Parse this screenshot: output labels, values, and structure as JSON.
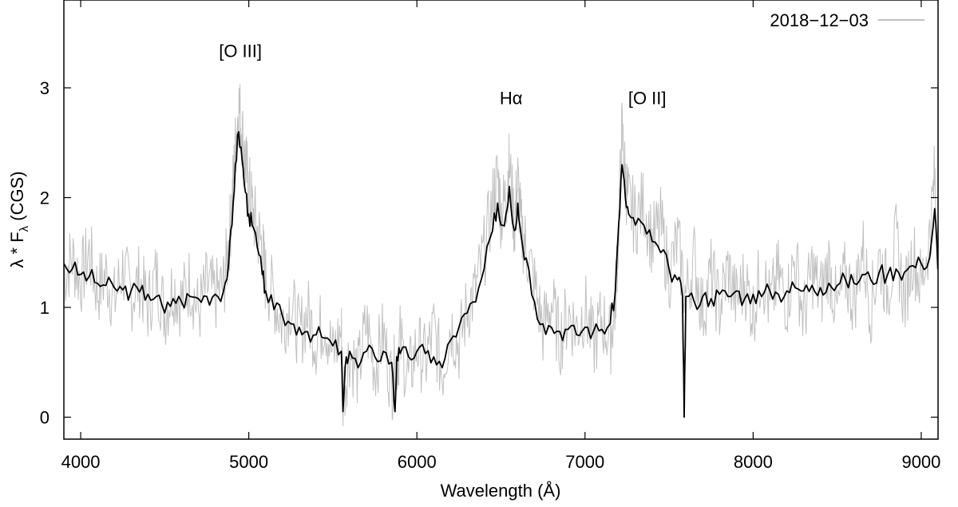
{
  "chart_data": {
    "type": "line",
    "title": "",
    "xlabel": "Wavelength (Å)",
    "ylabel_parts": {
      "lambda": "λ",
      "star": " * F",
      "sub": "λ",
      "unit": " (CGS)"
    },
    "xlim": [
      3900,
      9100
    ],
    "ylim": [
      -0.2,
      3.8
    ],
    "x_ticks": [
      4000,
      5000,
      6000,
      7000,
      8000,
      9000
    ],
    "y_ticks": [
      0,
      1,
      2,
      3
    ],
    "legend": {
      "position": "top-right",
      "label": "2018−12−03"
    },
    "annotations": [
      {
        "text": "[O III]",
        "x": 4950,
        "y": 3.28
      },
      {
        "text": "Hα",
        "x": 6560,
        "y": 2.85
      },
      {
        "text": "[O II]",
        "x": 7370,
        "y": 2.85
      }
    ],
    "series": [
      {
        "name": "2018−12−03",
        "style": "raw",
        "color": "#c0c0c0",
        "x": [
          3900,
          3950,
          4000,
          4050,
          4100,
          4150,
          4200,
          4250,
          4300,
          4350,
          4400,
          4450,
          4500,
          4550,
          4600,
          4650,
          4700,
          4750,
          4800,
          4850,
          4880,
          4900,
          4920,
          4940,
          4960,
          4980,
          5000,
          5020,
          5050,
          5080,
          5100,
          5150,
          5200,
          5250,
          5300,
          5350,
          5400,
          5450,
          5500,
          5550,
          5560,
          5600,
          5650,
          5700,
          5750,
          5800,
          5850,
          5880,
          5900,
          5950,
          6000,
          6050,
          6100,
          6150,
          6200,
          6250,
          6300,
          6350,
          6400,
          6450,
          6480,
          6500,
          6530,
          6550,
          6580,
          6600,
          6620,
          6650,
          6700,
          6750,
          6800,
          6850,
          6900,
          6950,
          7000,
          7050,
          7100,
          7150,
          7180,
          7200,
          7220,
          7240,
          7260,
          7300,
          7350,
          7400,
          7450,
          7500,
          7550,
          7600,
          7650,
          7700,
          7750,
          7800,
          7850,
          7900,
          7950,
          8000,
          8050,
          8100,
          8150,
          8200,
          8250,
          8300,
          8350,
          8400,
          8450,
          8500,
          8550,
          8600,
          8650,
          8700,
          8750,
          8800,
          8850,
          8900,
          8950,
          9000,
          9050,
          9080,
          9100
        ],
        "y": [
          1.3,
          1.45,
          1.25,
          1.5,
          1.15,
          1.3,
          1.05,
          1.35,
          1.1,
          1.25,
          1.0,
          1.3,
          0.95,
          1.2,
          1.05,
          1.25,
          0.95,
          1.2,
          1.1,
          1.2,
          1.55,
          1.95,
          2.45,
          2.85,
          2.6,
          2.3,
          2.1,
          1.9,
          1.7,
          1.55,
          1.25,
          1.1,
          0.85,
          1.05,
          0.75,
          0.95,
          0.7,
          0.9,
          0.55,
          0.8,
          0.2,
          0.6,
          0.4,
          0.85,
          0.45,
          0.75,
          0.3,
          0.5,
          0.7,
          0.35,
          0.65,
          0.5,
          0.8,
          0.4,
          0.85,
          0.65,
          1.0,
          1.15,
          1.5,
          1.95,
          2.2,
          1.85,
          2.0,
          2.3,
          1.75,
          2.15,
          1.7,
          1.55,
          1.2,
          0.8,
          1.05,
          0.7,
          0.95,
          0.8,
          1.0,
          0.65,
          0.9,
          0.7,
          1.05,
          1.75,
          2.6,
          2.15,
          1.95,
          1.8,
          1.95,
          1.6,
          1.75,
          1.3,
          1.6,
          1.1,
          1.45,
          0.95,
          1.3,
          1.0,
          1.35,
          1.05,
          1.25,
          0.95,
          1.35,
          1.0,
          1.3,
          1.05,
          1.45,
          0.9,
          1.35,
          1.1,
          1.4,
          0.95,
          1.3,
          1.05,
          1.55,
          1.0,
          1.45,
          1.15,
          1.6,
          1.05,
          1.5,
          1.2,
          1.65,
          2.2,
          1.45
        ]
      },
      {
        "name": "",
        "style": "smoothed",
        "color": "#000000",
        "x": [
          3900,
          3950,
          4000,
          4050,
          4100,
          4150,
          4200,
          4250,
          4300,
          4350,
          4400,
          4450,
          4500,
          4550,
          4600,
          4650,
          4700,
          4750,
          4800,
          4850,
          4880,
          4900,
          4920,
          4940,
          4960,
          4980,
          5000,
          5020,
          5050,
          5080,
          5100,
          5150,
          5200,
          5250,
          5300,
          5350,
          5400,
          5450,
          5500,
          5550,
          5560,
          5580,
          5600,
          5650,
          5700,
          5750,
          5800,
          5850,
          5870,
          5880,
          5900,
          5950,
          6000,
          6050,
          6100,
          6150,
          6200,
          6250,
          6300,
          6350,
          6400,
          6450,
          6480,
          6500,
          6530,
          6550,
          6580,
          6600,
          6620,
          6650,
          6700,
          6750,
          6800,
          6850,
          6900,
          6950,
          7000,
          7050,
          7100,
          7150,
          7180,
          7200,
          7220,
          7240,
          7260,
          7300,
          7350,
          7400,
          7450,
          7500,
          7550,
          7580,
          7590,
          7600,
          7650,
          7700,
          7750,
          7800,
          7850,
          7900,
          7950,
          8000,
          8050,
          8100,
          8150,
          8200,
          8250,
          8300,
          8350,
          8400,
          8450,
          8500,
          8550,
          8600,
          8650,
          8700,
          8750,
          8800,
          8850,
          8900,
          8950,
          9000,
          9050,
          9080,
          9100
        ],
        "y": [
          1.4,
          1.35,
          1.3,
          1.28,
          1.22,
          1.2,
          1.18,
          1.16,
          1.15,
          1.14,
          1.12,
          1.1,
          0.95,
          1.08,
          1.05,
          1.1,
          1.08,
          1.1,
          1.12,
          1.15,
          1.4,
          1.75,
          2.3,
          2.6,
          2.35,
          2.05,
          1.85,
          1.75,
          1.55,
          1.3,
          1.15,
          0.98,
          0.92,
          0.85,
          0.82,
          0.78,
          0.75,
          0.72,
          0.65,
          0.6,
          0.05,
          0.55,
          0.6,
          0.45,
          0.6,
          0.55,
          0.6,
          0.5,
          0.05,
          0.55,
          0.58,
          0.55,
          0.6,
          0.58,
          0.55,
          0.45,
          0.7,
          0.82,
          0.95,
          1.05,
          1.35,
          1.7,
          1.95,
          1.75,
          1.85,
          2.1,
          1.7,
          1.95,
          1.65,
          1.45,
          1.05,
          0.85,
          0.82,
          0.78,
          0.8,
          0.75,
          0.82,
          0.78,
          0.8,
          0.85,
          1.15,
          1.75,
          2.3,
          2.0,
          1.85,
          1.75,
          1.75,
          1.6,
          1.5,
          1.35,
          1.25,
          1.1,
          0.0,
          1.1,
          1.05,
          1.1,
          1.08,
          1.12,
          1.1,
          1.15,
          1.08,
          1.12,
          1.1,
          1.15,
          1.12,
          1.15,
          1.18,
          1.15,
          1.2,
          1.18,
          1.22,
          1.2,
          1.25,
          1.22,
          1.3,
          1.25,
          1.32,
          1.3,
          1.35,
          1.32,
          1.38,
          1.4,
          1.45,
          1.9,
          1.35
        ]
      }
    ]
  }
}
